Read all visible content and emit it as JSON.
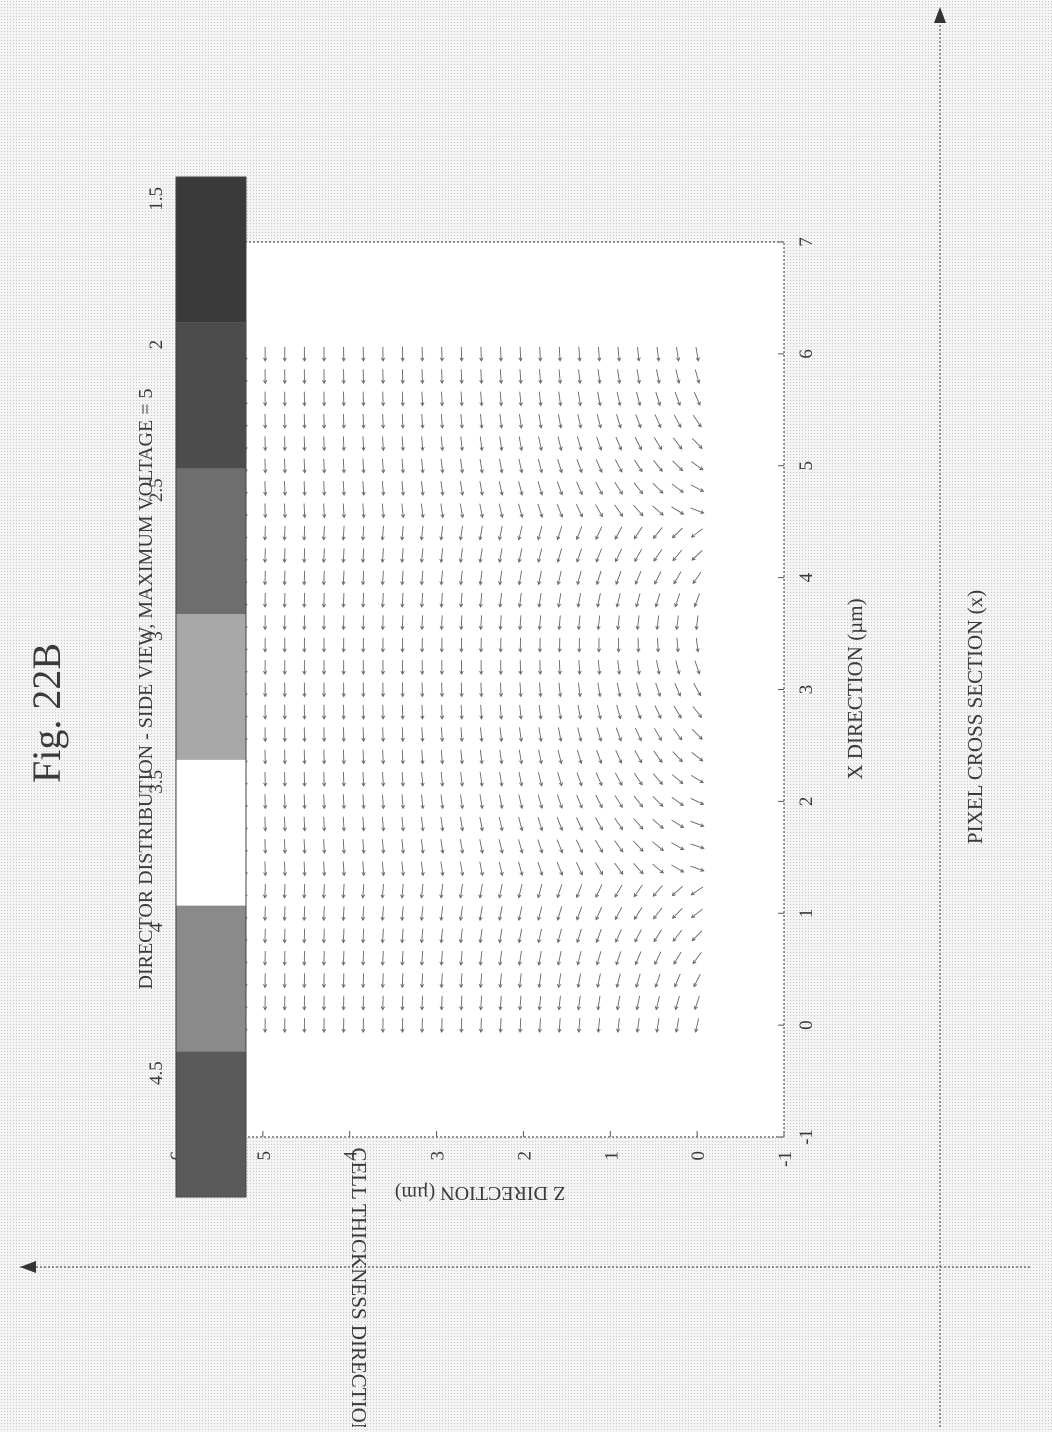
{
  "figure_label": "Fig. 22B",
  "outer_axes": {
    "vertical_label": "CELL THICKNESS DIRECTION (z)",
    "horizontal_label": "PIXEL CROSS SECTION (x)"
  },
  "chart_data": {
    "type": "vector-field",
    "title": "DIRECTOR DISTRIBUTION - SIDE VIEW, MAXIMUM VOLTAGE = 5",
    "xlabel": "X DIRECTION (µm)",
    "ylabel": "Z DIRECTION (µm)",
    "xlim": [
      -1,
      7
    ],
    "ylim": [
      -1,
      6
    ],
    "xticks": [
      "-1",
      "0",
      "1",
      "2",
      "3",
      "4",
      "5",
      "6",
      "7"
    ],
    "yticks": [
      "-1",
      "0",
      "1",
      "2",
      "3",
      "4",
      "5",
      "6"
    ],
    "grid": false,
    "field_x_range": [
      0,
      6
    ],
    "field_z_range": [
      0,
      5.2
    ],
    "field_columns": 31,
    "field_rows": 24,
    "disturbance_centers_x": [
      1.4,
      4.5
    ],
    "colorbar": {
      "ticks": [
        "4.5",
        "4",
        "3.5",
        "3",
        "2.5",
        "2",
        "1.5"
      ],
      "colors": [
        "#5a5a5a",
        "#8a8a8a",
        "#ffffff",
        "#a8a8a8",
        "#6e6e6e",
        "#4c4c4c",
        "#3a3a3a"
      ]
    }
  }
}
